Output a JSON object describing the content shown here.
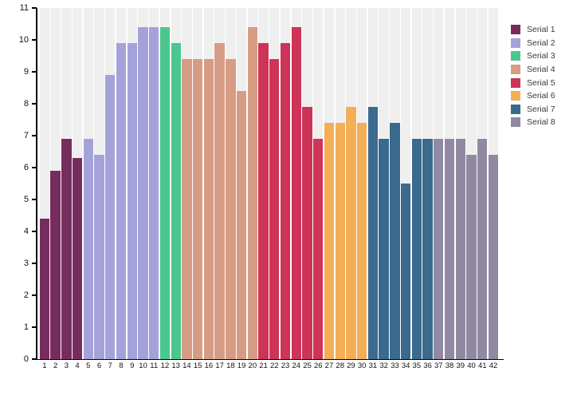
{
  "chart_data": {
    "type": "bar",
    "title": "",
    "xlabel": "",
    "ylabel": "",
    "ylim": [
      0,
      11
    ],
    "yticks": [
      "0",
      "1",
      "2",
      "3",
      "4",
      "5",
      "6",
      "7",
      "8",
      "9",
      "10",
      "11"
    ],
    "categories": [
      "1",
      "2",
      "3",
      "4",
      "5",
      "6",
      "7",
      "8",
      "9",
      "10",
      "11",
      "12",
      "13",
      "14",
      "15",
      "16",
      "17",
      "18",
      "19",
      "20",
      "21",
      "22",
      "23",
      "24",
      "25",
      "26",
      "27",
      "28",
      "29",
      "30",
      "31",
      "32",
      "33",
      "34",
      "35",
      "36",
      "37",
      "38",
      "39",
      "40",
      "41",
      "42"
    ],
    "grid": false,
    "legend_position": "right",
    "backdrop_color": "#EFEFEF",
    "axis_color": "#000000",
    "series": [
      {
        "name": "Serial 1",
        "color": "#772C5E",
        "x": [
          1,
          2,
          3,
          4
        ],
        "values": [
          4.4,
          5.9,
          6.9,
          6.3
        ]
      },
      {
        "name": "Serial 2",
        "color": "#A5A2DA",
        "x": [
          5,
          6,
          7,
          8,
          9,
          10,
          11
        ],
        "values": [
          6.9,
          6.4,
          8.9,
          9.9,
          9.9,
          10.4,
          10.4
        ]
      },
      {
        "name": "Serial 3",
        "color": "#4AC78D",
        "x": [
          12,
          13
        ],
        "values": [
          10.4,
          9.9
        ]
      },
      {
        "name": "Serial 4",
        "color": "#D79C84",
        "x": [
          14,
          15,
          16,
          17,
          18,
          19,
          20
        ],
        "values": [
          9.4,
          9.4,
          9.4,
          9.9,
          9.4,
          8.4,
          10.4
        ]
      },
      {
        "name": "Serial 5",
        "color": "#CE3358",
        "x": [
          21,
          22,
          23,
          24,
          25,
          26
        ],
        "values": [
          9.9,
          9.4,
          9.9,
          10.4,
          7.9,
          6.9
        ]
      },
      {
        "name": "Serial 6",
        "color": "#F4AE55",
        "x": [
          27,
          28,
          29,
          30
        ],
        "values": [
          7.4,
          7.4,
          7.9,
          7.4
        ]
      },
      {
        "name": "Serial 7",
        "color": "#3A6A8E",
        "x": [
          31,
          32,
          33,
          34,
          35,
          36
        ],
        "values": [
          7.9,
          6.9,
          7.4,
          5.5,
          6.9,
          6.9
        ]
      },
      {
        "name": "Serial 8",
        "color": "#9189A1",
        "x": [
          37,
          38,
          39,
          40,
          41,
          42
        ],
        "values": [
          6.9,
          6.9,
          6.9,
          6.4,
          6.9,
          6.4
        ]
      }
    ]
  }
}
